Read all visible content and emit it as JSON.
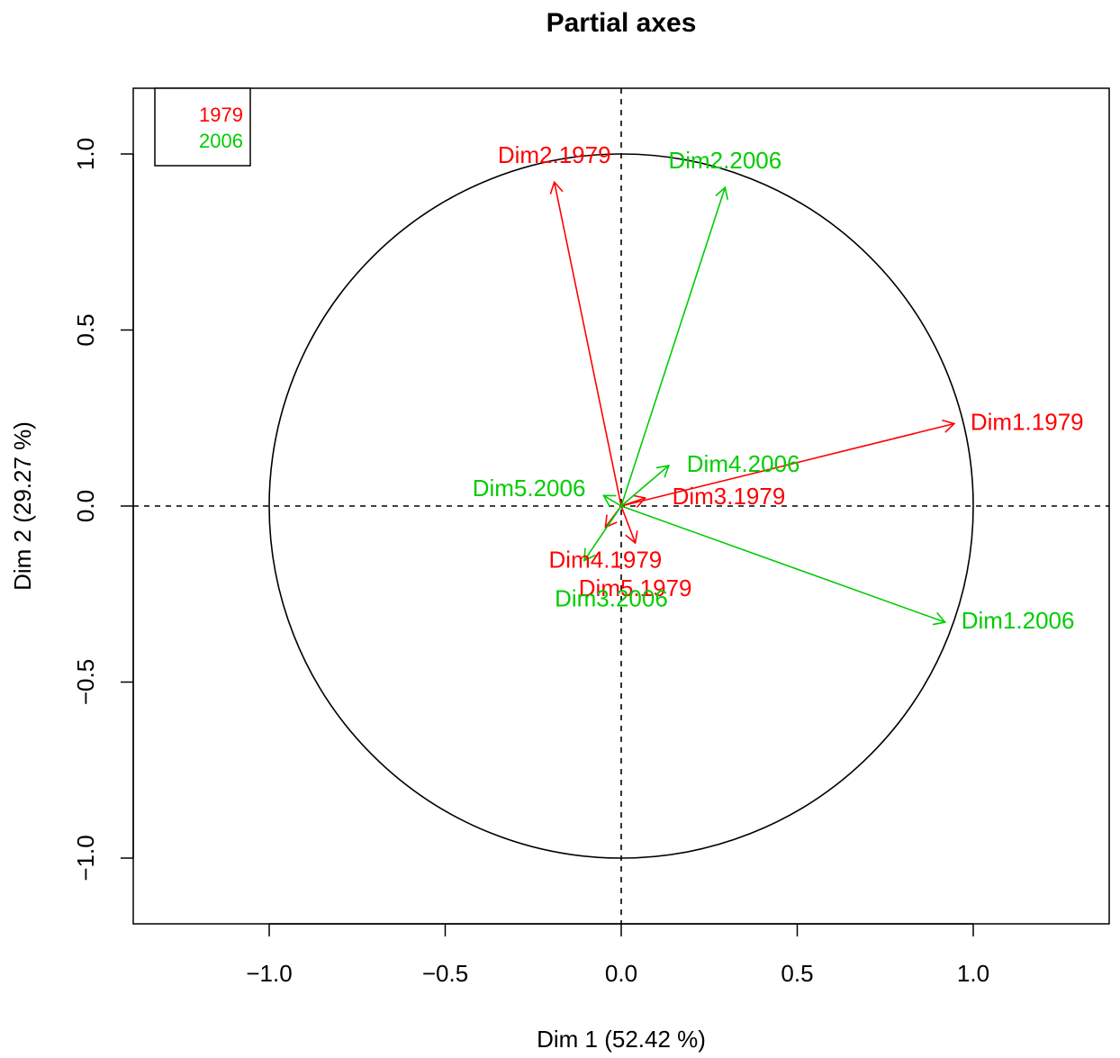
{
  "chart_data": {
    "type": "scatter",
    "title": "Partial axes",
    "xlabel": "Dim 1 (52.42 %)",
    "ylabel": "Dim 2 (29.27 %)",
    "xlim": [
      -1.0,
      1.0
    ],
    "ylim": [
      -1.0,
      1.0
    ],
    "x_ticks": [
      {
        "value": -1.0,
        "label": "−1.0"
      },
      {
        "value": -0.5,
        "label": "−0.5"
      },
      {
        "value": 0.0,
        "label": "0.0"
      },
      {
        "value": 0.5,
        "label": "0.5"
      },
      {
        "value": 1.0,
        "label": "1.0"
      }
    ],
    "y_ticks": [
      {
        "value": -1.0,
        "label": "−1.0"
      },
      {
        "value": -0.5,
        "label": "−0.5"
      },
      {
        "value": 0.0,
        "label": "0.0"
      },
      {
        "value": 0.5,
        "label": "0.5"
      },
      {
        "value": 1.0,
        "label": "1.0"
      }
    ],
    "unit_circle": true,
    "reference_lines": {
      "x": 0,
      "y": 0,
      "style": "dashed"
    },
    "legend": {
      "placement": "top-left",
      "entries": [
        {
          "name": "1979",
          "color": "#ff0000"
        },
        {
          "name": "2006",
          "color": "#00cd00"
        }
      ]
    },
    "series": [
      {
        "name": "1979",
        "color": "#ff0000",
        "arrows": [
          {
            "label": "Dim1.1979",
            "x": 0.946,
            "y": 0.234
          },
          {
            "label": "Dim2.1979",
            "x": -0.19,
            "y": 0.92
          },
          {
            "label": "Dim3.1979",
            "x": 0.068,
            "y": 0.023
          },
          {
            "label": "Dim4.1979",
            "x": -0.045,
            "y": -0.06
          },
          {
            "label": "Dim5.1979",
            "x": 0.04,
            "y": -0.105
          }
        ]
      },
      {
        "name": "2006",
        "color": "#00cd00",
        "arrows": [
          {
            "label": "Dim1.2006",
            "x": 0.92,
            "y": -0.33
          },
          {
            "label": "Dim2.2006",
            "x": 0.295,
            "y": 0.905
          },
          {
            "label": "Dim3.2006",
            "x": -0.105,
            "y": -0.155
          },
          {
            "label": "Dim4.2006",
            "x": 0.135,
            "y": 0.115
          },
          {
            "label": "Dim5.2006",
            "x": -0.05,
            "y": 0.03
          }
        ]
      }
    ]
  }
}
